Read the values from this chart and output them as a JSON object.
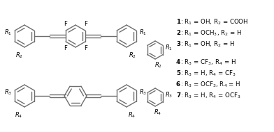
{
  "background_color": "#ffffff",
  "line_color": "#6e6e6e",
  "text_color": "#000000",
  "figsize": [
    3.92,
    1.9
  ],
  "dpi": 100,
  "labels_top": [
    {
      "num": "1",
      "text": ": R$_1$ = OH, R$_2$ = COOH"
    },
    {
      "num": "2",
      "text": ": R$_1$ = OCH$_3$, R$_2$ = H"
    },
    {
      "num": "3",
      "text": ": R$_1$ = OH, R$_2$ = H"
    }
  ],
  "labels_bottom": [
    {
      "num": "4",
      "text": ": R$_3$ = CF$_3$, R$_4$ = H"
    },
    {
      "num": "5",
      "text": ": R$_3$ = H, R$_4$ = CF$_3$"
    },
    {
      "num": "6",
      "text": ": R$_3$ = OCF$_3$, R$_4$ = H"
    },
    {
      "num": "7",
      "text": ": R$_3$ = H, R$_4$ = OCF$_3$"
    }
  ]
}
